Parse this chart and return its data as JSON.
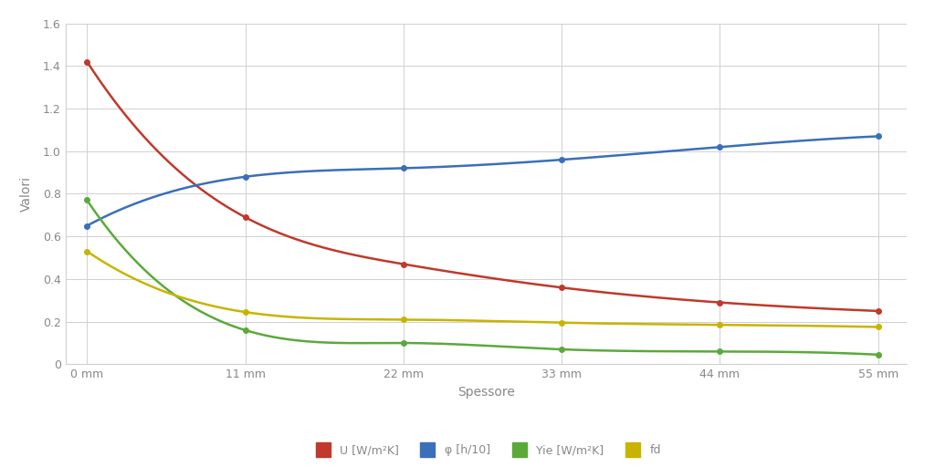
{
  "x_values": [
    0,
    11,
    22,
    33,
    44,
    55
  ],
  "x_labels": [
    "0 mm",
    "11 mm",
    "22 mm",
    "33 mm",
    "44 mm",
    "55 mm"
  ],
  "U": [
    1.42,
    0.69,
    0.47,
    0.36,
    0.29,
    0.25
  ],
  "phi": [
    0.65,
    0.88,
    0.92,
    0.96,
    1.02,
    1.07
  ],
  "Yie": [
    0.77,
    0.16,
    0.1,
    0.07,
    0.06,
    0.045
  ],
  "fd": [
    0.53,
    0.245,
    0.21,
    0.195,
    0.185,
    0.175
  ],
  "color_U": "#c0392b",
  "color_phi": "#3a6fba",
  "color_Yie": "#5aaa3a",
  "color_fd": "#c8b400",
  "ylabel": "Valori",
  "xlabel": "Spessore",
  "ylim": [
    0,
    1.6
  ],
  "yticks": [
    0,
    0.2,
    0.4,
    0.6,
    0.8,
    1.0,
    1.2,
    1.4,
    1.6
  ],
  "legend_labels": [
    "U [W/m²K]",
    "φ [h/10]",
    "Yie [W/m²K]",
    "fd"
  ],
  "background_color": "#ffffff",
  "grid_color": "#d0d0d0",
  "tick_color": "#888888",
  "label_color": "#888888"
}
